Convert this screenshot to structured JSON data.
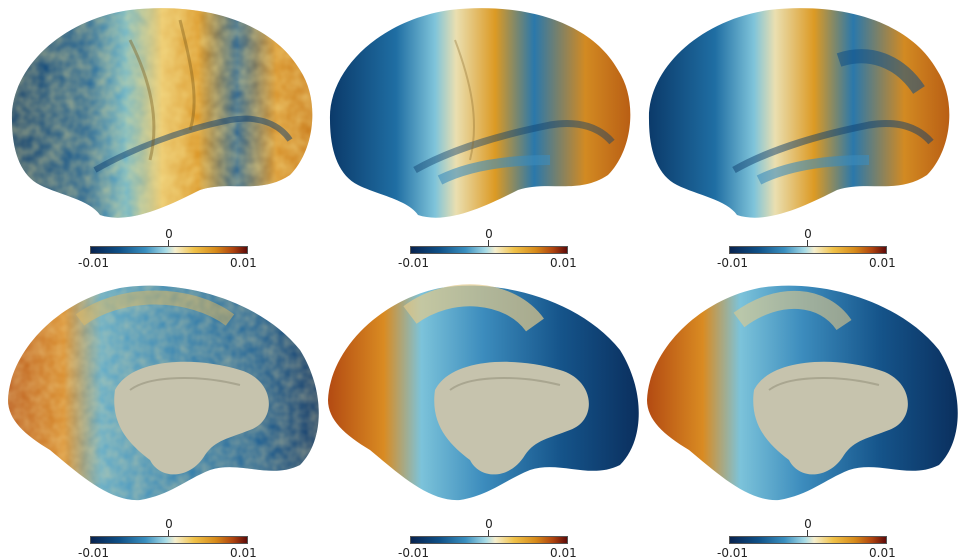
{
  "figure": {
    "colorbar": {
      "min_label": "-0.01",
      "mid_label": "0",
      "max_label": "0.01",
      "colors": [
        "#08234f",
        "#0e4f86",
        "#3a8fbf",
        "#a8dbe6",
        "#f5efcf",
        "#f0c24a",
        "#d68a1a",
        "#b0440e",
        "#5e0a0a"
      ]
    },
    "panels": [
      {
        "view": "lateral",
        "style": "noisy"
      },
      {
        "view": "lateral",
        "style": "smooth"
      },
      {
        "view": "lateral",
        "style": "smooth"
      },
      {
        "view": "medial",
        "style": "noisy"
      },
      {
        "view": "medial",
        "style": "smooth"
      },
      {
        "view": "medial",
        "style": "smooth"
      }
    ]
  }
}
